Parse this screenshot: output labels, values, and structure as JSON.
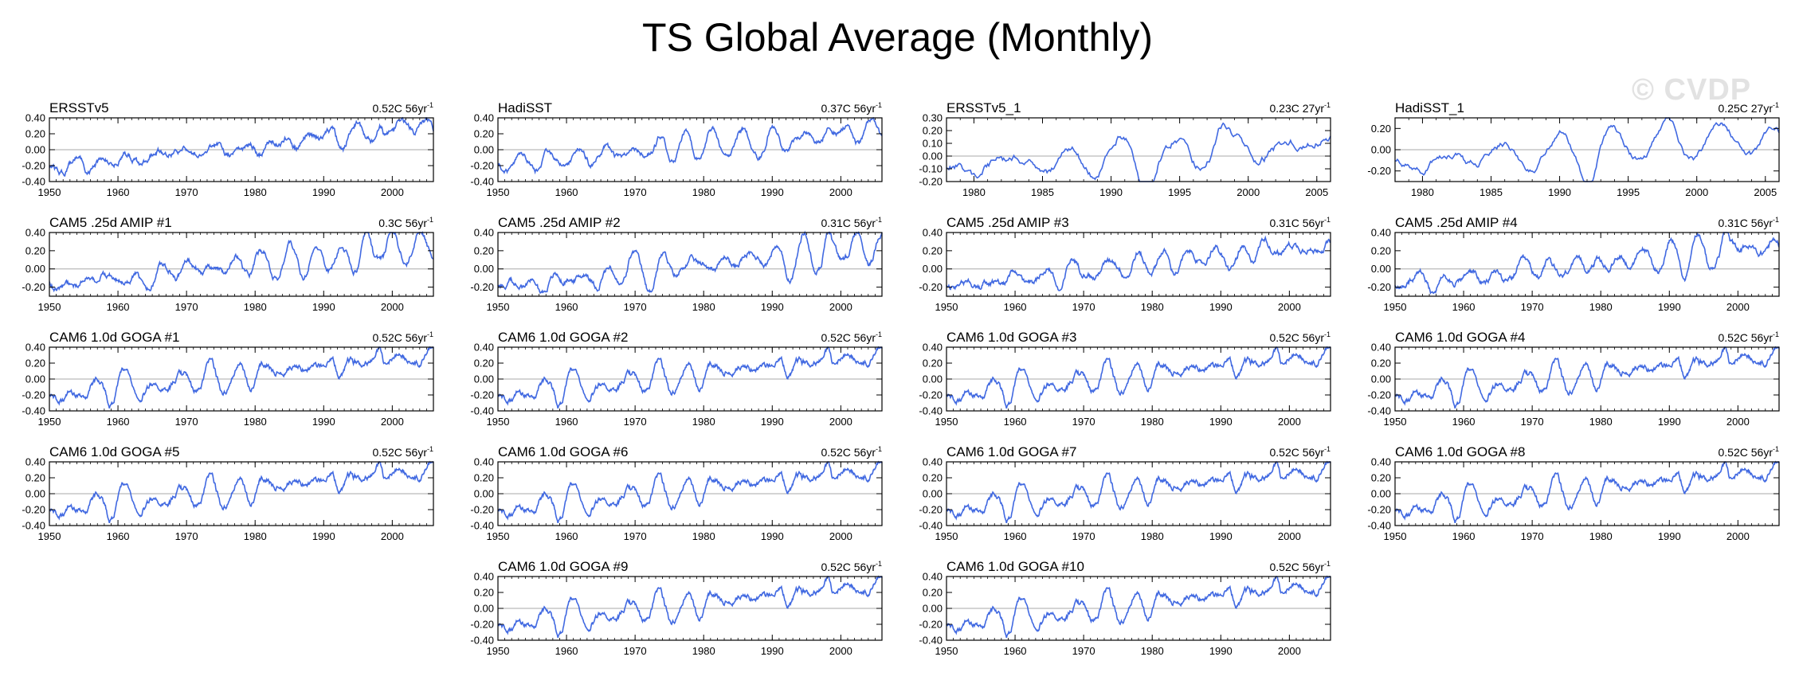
{
  "title": "TS Global Average (Monthly)",
  "watermark": "© CVDP",
  "colors": {
    "line": "#4169e1",
    "axis": "#000000",
    "zero": "#a8a8a8",
    "text": "#000000"
  },
  "chart_data": [
    {
      "type": "line",
      "title": "ERSSTv5",
      "trend": "0.52C 56yr",
      "trend_exp": "-1",
      "xlim": [
        1950,
        2006
      ],
      "xticks": [
        1950,
        1960,
        1970,
        1980,
        1990,
        2000
      ],
      "ylim": [
        -0.4,
        0.4
      ],
      "yticks": [
        0.4,
        0.2,
        0.0,
        -0.2,
        -0.4
      ],
      "ytick_labels": [
        "0.40",
        "0.20",
        "0.00",
        "-0.20",
        "-0.40"
      ],
      "seed": 11,
      "amp": 1.0
    },
    {
      "type": "line",
      "title": "HadiSST",
      "trend": "0.37C 56yr",
      "trend_exp": "-1",
      "xlim": [
        1950,
        2006
      ],
      "xticks": [
        1950,
        1960,
        1970,
        1980,
        1990,
        2000
      ],
      "ylim": [
        -0.4,
        0.4
      ],
      "yticks": [
        0.4,
        0.2,
        0.0,
        -0.2,
        -0.4
      ],
      "ytick_labels": [
        "0.40",
        "0.20",
        "0.00",
        "-0.20",
        "-0.40"
      ],
      "seed": 12,
      "amp": 0.85
    },
    {
      "type": "line",
      "title": "ERSSTv5_1",
      "trend": "0.23C 27yr",
      "trend_exp": "-1",
      "xlim": [
        1978,
        2006
      ],
      "xticks": [
        1980,
        1985,
        1990,
        1995,
        2000,
        2005
      ],
      "ylim": [
        -0.2,
        0.3
      ],
      "yticks": [
        0.3,
        0.2,
        0.1,
        0.0,
        -0.1,
        -0.2
      ],
      "ytick_labels": [
        "0.30",
        "0.20",
        "0.10",
        "0.00",
        "-0.10",
        "-0.20"
      ],
      "seed": 13,
      "amp": 0.8
    },
    {
      "type": "line",
      "title": "HadiSST_1",
      "trend": "0.25C 27yr",
      "trend_exp": "-1",
      "xlim": [
        1978,
        2006
      ],
      "xticks": [
        1980,
        1985,
        1990,
        1995,
        2000,
        2005
      ],
      "ylim": [
        -0.3,
        0.3
      ],
      "yticks": [
        0.2,
        0.0,
        -0.2
      ],
      "ytick_labels": [
        "0.20",
        "0.00",
        "-0.20"
      ],
      "seed": 14,
      "amp": 0.85
    },
    {
      "type": "line",
      "title": "CAM5 .25d AMIP #1",
      "trend": "0.3C 56yr",
      "trend_exp": "-1",
      "xlim": [
        1950,
        2006
      ],
      "xticks": [
        1950,
        1960,
        1970,
        1980,
        1990,
        2000
      ],
      "ylim": [
        -0.3,
        0.4
      ],
      "yticks": [
        0.4,
        0.2,
        0.0,
        -0.2
      ],
      "ytick_labels": [
        "0.40",
        "0.20",
        "0.00",
        "-0.20"
      ],
      "seed": 21,
      "amp": 0.85
    },
    {
      "type": "line",
      "title": "CAM5 .25d AMIP #2",
      "trend": "0.31C 56yr",
      "trend_exp": "-1",
      "xlim": [
        1950,
        2006
      ],
      "xticks": [
        1950,
        1960,
        1970,
        1980,
        1990,
        2000
      ],
      "ylim": [
        -0.3,
        0.4
      ],
      "yticks": [
        0.4,
        0.2,
        0.0,
        -0.2
      ],
      "ytick_labels": [
        "0.40",
        "0.20",
        "0.00",
        "-0.20"
      ],
      "seed": 22,
      "amp": 0.85
    },
    {
      "type": "line",
      "title": "CAM5 .25d AMIP #3",
      "trend": "0.31C 56yr",
      "trend_exp": "-1",
      "xlim": [
        1950,
        2006
      ],
      "xticks": [
        1950,
        1960,
        1970,
        1980,
        1990,
        2000
      ],
      "ylim": [
        -0.3,
        0.4
      ],
      "yticks": [
        0.4,
        0.2,
        0.0,
        -0.2
      ],
      "ytick_labels": [
        "0.40",
        "0.20",
        "0.00",
        "-0.20"
      ],
      "seed": 23,
      "amp": 0.85
    },
    {
      "type": "line",
      "title": "CAM5 .25d AMIP #4",
      "trend": "0.31C 56yr",
      "trend_exp": "-1",
      "xlim": [
        1950,
        2006
      ],
      "xticks": [
        1950,
        1960,
        1970,
        1980,
        1990,
        2000
      ],
      "ylim": [
        -0.3,
        0.4
      ],
      "yticks": [
        0.4,
        0.2,
        0.0,
        -0.2
      ],
      "ytick_labels": [
        "0.40",
        "0.20",
        "0.00",
        "-0.20"
      ],
      "seed": 24,
      "amp": 0.85
    },
    {
      "type": "line",
      "title": "CAM6 1.0d GOGA #1",
      "trend": "0.52C 56yr",
      "trend_exp": "-1",
      "xlim": [
        1950,
        2006
      ],
      "xticks": [
        1950,
        1960,
        1970,
        1980,
        1990,
        2000
      ],
      "ylim": [
        -0.4,
        0.4
      ],
      "yticks": [
        0.4,
        0.2,
        0.0,
        -0.2,
        -0.4
      ],
      "ytick_labels": [
        "0.40",
        "0.20",
        "0.00",
        "-0.20",
        "-0.40"
      ],
      "seed": 31,
      "amp": 1.0
    },
    {
      "type": "line",
      "title": "CAM6 1.0d GOGA #2",
      "trend": "0.52C 56yr",
      "trend_exp": "-1",
      "xlim": [
        1950,
        2006
      ],
      "xticks": [
        1950,
        1960,
        1970,
        1980,
        1990,
        2000
      ],
      "ylim": [
        -0.4,
        0.4
      ],
      "yticks": [
        0.4,
        0.2,
        0.0,
        -0.2,
        -0.4
      ],
      "ytick_labels": [
        "0.40",
        "0.20",
        "0.00",
        "-0.20",
        "-0.40"
      ],
      "seed": 31,
      "amp": 1.0
    },
    {
      "type": "line",
      "title": "CAM6 1.0d GOGA #3",
      "trend": "0.52C 56yr",
      "trend_exp": "-1",
      "xlim": [
        1950,
        2006
      ],
      "xticks": [
        1950,
        1960,
        1970,
        1980,
        1990,
        2000
      ],
      "ylim": [
        -0.4,
        0.4
      ],
      "yticks": [
        0.4,
        0.2,
        0.0,
        -0.2,
        -0.4
      ],
      "ytick_labels": [
        "0.40",
        "0.20",
        "0.00",
        "-0.20",
        "-0.40"
      ],
      "seed": 31,
      "amp": 1.0
    },
    {
      "type": "line",
      "title": "CAM6 1.0d GOGA #4",
      "trend": "0.52C 56yr",
      "trend_exp": "-1",
      "xlim": [
        1950,
        2006
      ],
      "xticks": [
        1950,
        1960,
        1970,
        1980,
        1990,
        2000
      ],
      "ylim": [
        -0.4,
        0.4
      ],
      "yticks": [
        0.4,
        0.2,
        0.0,
        -0.2,
        -0.4
      ],
      "ytick_labels": [
        "0.40",
        "0.20",
        "0.00",
        "-0.20",
        "-0.40"
      ],
      "seed": 31,
      "amp": 1.0
    },
    {
      "type": "line",
      "title": "CAM6 1.0d GOGA #5",
      "trend": "0.52C 56yr",
      "trend_exp": "-1",
      "xlim": [
        1950,
        2006
      ],
      "xticks": [
        1950,
        1960,
        1970,
        1980,
        1990,
        2000
      ],
      "ylim": [
        -0.4,
        0.4
      ],
      "yticks": [
        0.4,
        0.2,
        0.0,
        -0.2,
        -0.4
      ],
      "ytick_labels": [
        "0.40",
        "0.20",
        "0.00",
        "-0.20",
        "-0.40"
      ],
      "seed": 31,
      "amp": 1.0
    },
    {
      "type": "line",
      "title": "CAM6 1.0d GOGA #6",
      "trend": "0.52C 56yr",
      "trend_exp": "-1",
      "xlim": [
        1950,
        2006
      ],
      "xticks": [
        1950,
        1960,
        1970,
        1980,
        1990,
        2000
      ],
      "ylim": [
        -0.4,
        0.4
      ],
      "yticks": [
        0.4,
        0.2,
        0.0,
        -0.2,
        -0.4
      ],
      "ytick_labels": [
        "0.40",
        "0.20",
        "0.00",
        "-0.20",
        "-0.40"
      ],
      "seed": 31,
      "amp": 1.0
    },
    {
      "type": "line",
      "title": "CAM6 1.0d GOGA #7",
      "trend": "0.52C 56yr",
      "trend_exp": "-1",
      "xlim": [
        1950,
        2006
      ],
      "xticks": [
        1950,
        1960,
        1970,
        1980,
        1990,
        2000
      ],
      "ylim": [
        -0.4,
        0.4
      ],
      "yticks": [
        0.4,
        0.2,
        0.0,
        -0.2,
        -0.4
      ],
      "ytick_labels": [
        "0.40",
        "0.20",
        "0.00",
        "-0.20",
        "-0.40"
      ],
      "seed": 31,
      "amp": 1.0
    },
    {
      "type": "line",
      "title": "CAM6 1.0d GOGA #8",
      "trend": "0.52C 56yr",
      "trend_exp": "-1",
      "xlim": [
        1950,
        2006
      ],
      "xticks": [
        1950,
        1960,
        1970,
        1980,
        1990,
        2000
      ],
      "ylim": [
        -0.4,
        0.4
      ],
      "yticks": [
        0.4,
        0.2,
        0.0,
        -0.2,
        -0.4
      ],
      "ytick_labels": [
        "0.40",
        "0.20",
        "0.00",
        "-0.20",
        "-0.40"
      ],
      "seed": 31,
      "amp": 1.0
    },
    {
      "type": "line",
      "title": "CAM6 1.0d GOGA #9",
      "trend": "0.52C 56yr",
      "trend_exp": "-1",
      "xlim": [
        1950,
        2006
      ],
      "xticks": [
        1950,
        1960,
        1970,
        1980,
        1990,
        2000
      ],
      "ylim": [
        -0.4,
        0.4
      ],
      "yticks": [
        0.4,
        0.2,
        0.0,
        -0.2,
        -0.4
      ],
      "ytick_labels": [
        "0.40",
        "0.20",
        "0.00",
        "-0.20",
        "-0.40"
      ],
      "seed": 31,
      "amp": 1.0
    },
    {
      "type": "line",
      "title": "CAM6 1.0d GOGA #10",
      "trend": "0.52C 56yr",
      "trend_exp": "-1",
      "xlim": [
        1950,
        2006
      ],
      "xticks": [
        1950,
        1960,
        1970,
        1980,
        1990,
        2000
      ],
      "ylim": [
        -0.4,
        0.4
      ],
      "yticks": [
        0.4,
        0.2,
        0.0,
        -0.2,
        -0.4
      ],
      "ytick_labels": [
        "0.40",
        "0.20",
        "0.00",
        "-0.20",
        "-0.40"
      ],
      "seed": 31,
      "amp": 1.0
    }
  ]
}
